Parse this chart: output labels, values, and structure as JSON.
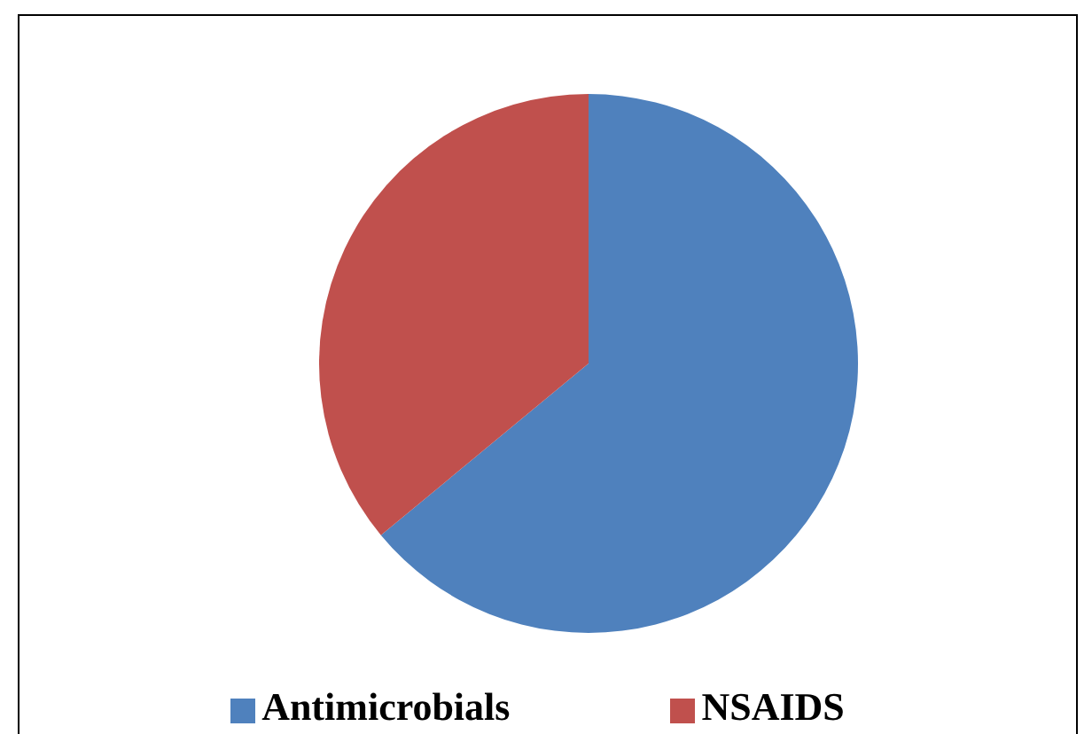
{
  "chart_data": {
    "type": "pie",
    "categories": [
      "Antimicrobials",
      "NSAIDS"
    ],
    "values": [
      64,
      36
    ],
    "colors": [
      "#4f81bd",
      "#c0504d"
    ],
    "legend": "bottom"
  }
}
